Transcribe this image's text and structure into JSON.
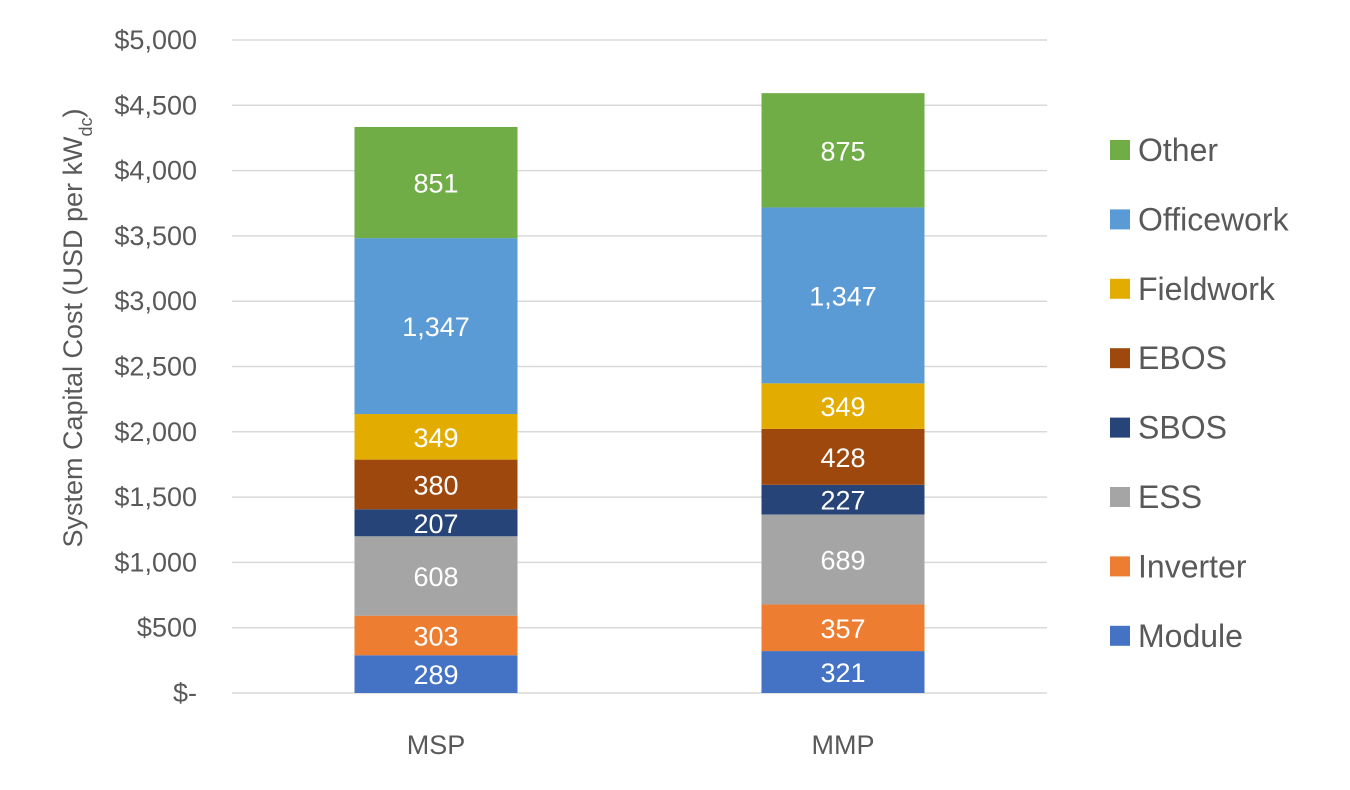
{
  "chart_data": {
    "type": "bar",
    "stacked": true,
    "categories": [
      "MSP",
      "MMP"
    ],
    "ylabel_main": "System Capital Cost (USD per kW",
    "ylabel_sub": "dc",
    "ylabel_close": ")",
    "ylim": [
      0,
      5000
    ],
    "yticks": [
      0,
      500,
      1000,
      1500,
      2000,
      2500,
      3000,
      3500,
      4000,
      4500,
      5000
    ],
    "ytick_labels": [
      "$-",
      "$500",
      "$1,000",
      "$1,500",
      "$2,000",
      "$2,500",
      "$3,000",
      "$3,500",
      "$4,000",
      "$4,500",
      "$5,000"
    ],
    "grid": true,
    "legend_position": "right",
    "series": [
      {
        "name": "Module",
        "color": "#4472C4",
        "values": [
          289,
          321
        ],
        "labels": [
          "289",
          "321"
        ]
      },
      {
        "name": "Inverter",
        "color": "#ED7D31",
        "values": [
          303,
          357
        ],
        "labels": [
          "303",
          "357"
        ]
      },
      {
        "name": "ESS",
        "color": "#A5A5A5",
        "values": [
          608,
          689
        ],
        "labels": [
          "608",
          "689"
        ]
      },
      {
        "name": "SBOS",
        "color": "#264478",
        "values": [
          207,
          227
        ],
        "labels": [
          "207",
          "227"
        ]
      },
      {
        "name": "EBOS",
        "color": "#9E480E",
        "values": [
          380,
          428
        ],
        "labels": [
          "380",
          "428"
        ]
      },
      {
        "name": "Fieldwork",
        "color": "#E2AC00",
        "values": [
          349,
          349
        ],
        "labels": [
          "349",
          "349"
        ]
      },
      {
        "name": "Officework",
        "color": "#5B9BD5",
        "values": [
          1347,
          1347
        ],
        "labels": [
          "1,347",
          "1,347"
        ]
      },
      {
        "name": "Other",
        "color": "#70AD47",
        "values": [
          851,
          875
        ],
        "labels": [
          "851",
          "875"
        ]
      }
    ]
  }
}
